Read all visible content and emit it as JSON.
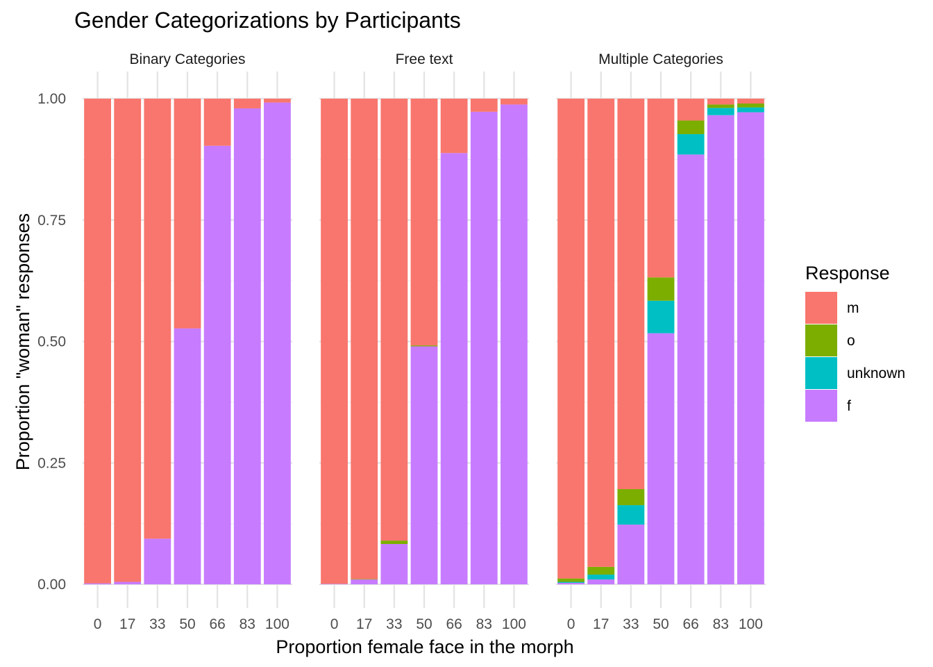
{
  "chart_data": {
    "type": "bar",
    "stacked": true,
    "title": "Gender Categorizations by Participants",
    "xlabel": "Proportion female face in the morph",
    "ylabel": "Proportion \"woman\" responses",
    "ylim": [
      0,
      1
    ],
    "yticks": [
      "0.00",
      "0.25",
      "0.50",
      "0.75",
      "1.00"
    ],
    "categories": [
      "0",
      "17",
      "33",
      "50",
      "66",
      "83",
      "100"
    ],
    "grid": true,
    "legend": {
      "title": "Response",
      "position": "right",
      "items": [
        {
          "label": "m",
          "color": "#F8766D"
        },
        {
          "label": "o",
          "color": "#7CAE00"
        },
        {
          "label": "unknown",
          "color": "#00BFC4"
        },
        {
          "label": "f",
          "color": "#C77CFF"
        }
      ]
    },
    "colors": {
      "m": "#F8766D",
      "o": "#7CAE00",
      "unknown": "#00BFC4",
      "f": "#C77CFF"
    },
    "stack_order_bottom_to_top": [
      "f",
      "unknown",
      "o",
      "m"
    ],
    "panels": [
      {
        "label": "Binary Categories",
        "series": [
          {
            "name": "f",
            "values": [
              0.002,
              0.005,
              0.094,
              0.527,
              0.903,
              0.98,
              0.992
            ]
          },
          {
            "name": "unknown",
            "values": [
              0,
              0,
              0,
              0,
              0,
              0,
              0
            ]
          },
          {
            "name": "o",
            "values": [
              0,
              0,
              0,
              0,
              0,
              0,
              0
            ]
          },
          {
            "name": "m",
            "values": [
              0.998,
              0.995,
              0.906,
              0.473,
              0.097,
              0.02,
              0.008
            ]
          }
        ]
      },
      {
        "label": "Free text",
        "series": [
          {
            "name": "f",
            "values": [
              0.001,
              0.01,
              0.083,
              0.49,
              0.888,
              0.973,
              0.988
            ]
          },
          {
            "name": "unknown",
            "values": [
              0,
              0,
              0,
              0,
              0,
              0,
              0
            ]
          },
          {
            "name": "o",
            "values": [
              0,
              0.001,
              0.007,
              0.002,
              0,
              0,
              0
            ]
          },
          {
            "name": "m",
            "values": [
              0.999,
              0.989,
              0.91,
              0.508,
              0.112,
              0.027,
              0.012
            ]
          }
        ]
      },
      {
        "label": "Multiple Categories",
        "series": [
          {
            "name": "f",
            "values": [
              0.003,
              0.01,
              0.123,
              0.517,
              0.885,
              0.966,
              0.972
            ]
          },
          {
            "name": "unknown",
            "values": [
              0.002,
              0.01,
              0.04,
              0.067,
              0.042,
              0.015,
              0.01
            ]
          },
          {
            "name": "o",
            "values": [
              0.007,
              0.016,
              0.033,
              0.048,
              0.028,
              0.007,
              0.008
            ]
          },
          {
            "name": "m",
            "values": [
              0.988,
              0.964,
              0.804,
              0.368,
              0.045,
              0.012,
              0.01
            ]
          }
        ]
      }
    ]
  }
}
